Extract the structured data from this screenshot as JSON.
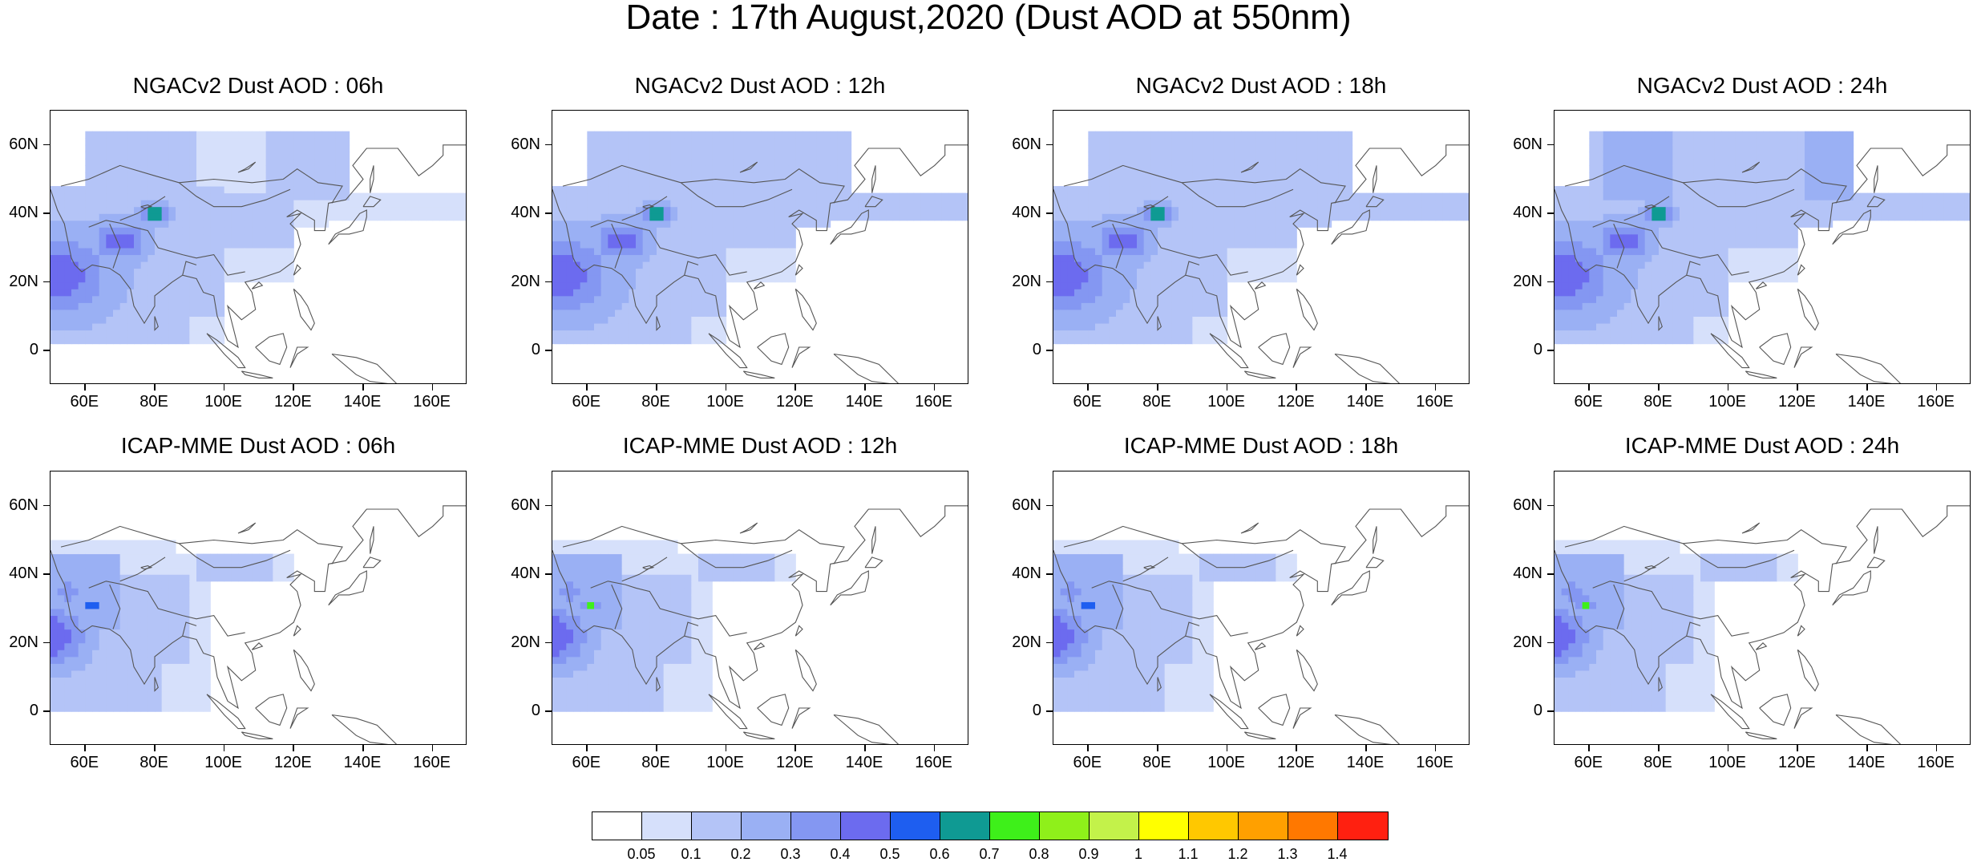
{
  "title": "Date : 17th August,2020 (Dust AOD at 550nm)",
  "panels": [
    {
      "title": "NGACv2 Dust AOD : 06h",
      "model": "NGACv2",
      "hour": "06h"
    },
    {
      "title": "NGACv2 Dust AOD : 12h",
      "model": "NGACv2",
      "hour": "12h"
    },
    {
      "title": "NGACv2 Dust AOD : 18h",
      "model": "NGACv2",
      "hour": "18h"
    },
    {
      "title": "NGACv2 Dust AOD : 24h",
      "model": "NGACv2",
      "hour": "24h"
    },
    {
      "title": "ICAP-MME Dust AOD : 06h",
      "model": "ICAP-MME",
      "hour": "06h"
    },
    {
      "title": "ICAP-MME Dust AOD : 12h",
      "model": "ICAP-MME",
      "hour": "12h"
    },
    {
      "title": "ICAP-MME Dust AOD : 18h",
      "model": "ICAP-MME",
      "hour": "18h"
    },
    {
      "title": "ICAP-MME Dust AOD : 24h",
      "model": "ICAP-MME",
      "hour": "24h"
    }
  ],
  "map": {
    "lon_range": [
      50,
      170
    ],
    "lat_range": [
      -10,
      70
    ],
    "lon_ticks": [
      "60E",
      "80E",
      "100E",
      "120E",
      "140E",
      "160E"
    ],
    "lon_tick_values": [
      60,
      80,
      100,
      120,
      140,
      160
    ],
    "lat_ticks": [
      "0",
      "20N",
      "40N",
      "60N"
    ],
    "lat_tick_values": [
      0,
      20,
      40,
      60
    ]
  },
  "colorbar": {
    "levels": [
      "0.05",
      "0.1",
      "0.2",
      "0.3",
      "0.4",
      "0.5",
      "0.6",
      "0.7",
      "0.8",
      "0.9",
      "1",
      "1.1",
      "1.2",
      "1.3",
      "1.4"
    ],
    "colors": [
      "#ffffff",
      "#d6e0fb",
      "#b4c4f7",
      "#9ab0f4",
      "#8497f2",
      "#6c6bef",
      "#1e5ef0",
      "#0f9a93",
      "#3ef01a",
      "#8ff01a",
      "#c3f24a",
      "#ffff00",
      "#ffc800",
      "#ffa000",
      "#ff7800",
      "#ff2010"
    ]
  },
  "style": {
    "coastline_color": "#555555"
  }
}
